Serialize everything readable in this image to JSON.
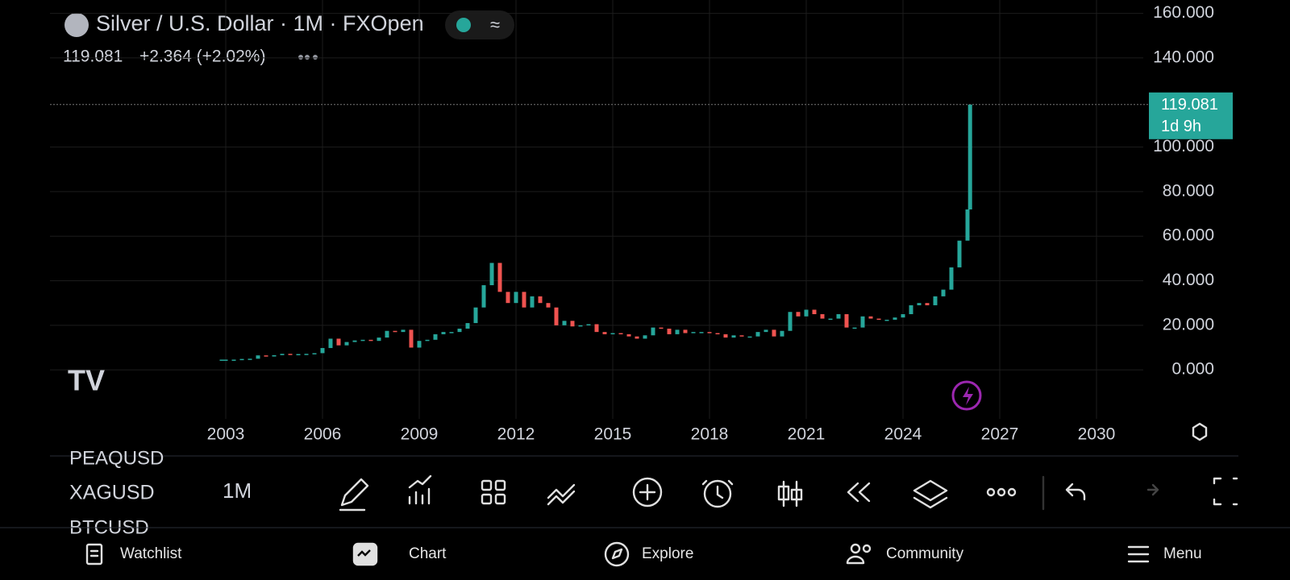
{
  "header": {
    "title": "Silver / U.S. Dollar · 1M · FXOpen",
    "price": "119.081",
    "change": "+2.364 (+2.02%)"
  },
  "chart_data": {
    "type": "candlestick",
    "x": [
      2002.875,
      2003.0,
      2003.25,
      2003.5,
      2003.75,
      2004.0,
      2004.25,
      2004.5,
      2004.75,
      2005.0,
      2005.25,
      2005.5,
      2005.75,
      2006.0,
      2006.25,
      2006.5,
      2006.75,
      2007.0,
      2007.25,
      2007.5,
      2007.75,
      2008.0,
      2008.25,
      2008.5,
      2008.75,
      2009.0,
      2009.25,
      2009.5,
      2009.75,
      2010.0,
      2010.25,
      2010.5,
      2010.75,
      2011.0,
      2011.25,
      2011.5,
      2011.75,
      2012.0,
      2012.25,
      2012.5,
      2012.75,
      2013.0,
      2013.25,
      2013.5,
      2013.75,
      2014.0,
      2014.25,
      2014.5,
      2014.75,
      2015.0,
      2015.25,
      2015.5,
      2015.75,
      2016.0,
      2016.25,
      2016.5,
      2016.75,
      2017.0,
      2017.25,
      2017.5,
      2017.75,
      2018.0,
      2018.25,
      2018.5,
      2018.75,
      2019.0,
      2019.25,
      2019.5,
      2019.75,
      2020.0,
      2020.25,
      2020.5,
      2020.75,
      2021.0,
      2021.25,
      2021.5,
      2021.75,
      2022.0,
      2022.25,
      2022.5,
      2022.75,
      2023.0,
      2023.25,
      2023.5,
      2023.75,
      2024.0,
      2024.25,
      2024.5,
      2024.75,
      2025.0,
      2025.25,
      2025.5,
      2025.75,
      2026.0,
      2026.08
    ],
    "values": [
      4.6,
      4.6,
      4.6,
      4.9,
      5.0,
      6.5,
      6.0,
      6.6,
      7.2,
      7.0,
      7.1,
      7.2,
      7.5,
      9.8,
      14,
      11,
      12.5,
      13.2,
      13.5,
      13,
      14.5,
      17.5,
      17,
      18,
      10,
      13,
      13.5,
      16,
      17,
      17,
      18.5,
      21,
      28,
      38,
      48,
      35,
      30,
      35,
      28,
      33,
      30,
      28,
      20,
      22,
      19.5,
      20,
      20.5,
      17,
      16,
      16.5,
      16,
      15,
      14,
      15.5,
      19,
      18.5,
      16,
      18,
      16.5,
      17,
      17,
      16.5,
      16,
      14.5,
      15.5,
      15,
      15,
      17,
      18,
      15,
      17.5,
      26,
      24,
      27,
      25,
      23,
      23,
      25,
      19,
      19,
      24,
      23,
      22.5,
      22.5,
      23.5,
      25,
      29,
      30,
      29,
      33,
      36,
      46,
      58,
      72,
      119.081
    ],
    "xlim": [
      1997.55,
      2031.45
    ],
    "xticks": [
      2003,
      2006,
      2009,
      2012,
      2015,
      2018,
      2021,
      2024,
      2027,
      2030
    ],
    "ylim": [
      -22,
      166
    ],
    "yticks": [
      {
        "value": 0,
        "label": "0.000"
      },
      {
        "value": 20,
        "label": "20.000"
      },
      {
        "value": 40,
        "label": "40.000"
      },
      {
        "value": 60,
        "label": "60.000"
      },
      {
        "value": 80,
        "label": "80.000"
      },
      {
        "value": 100,
        "label": "100.000"
      },
      {
        "value": 140,
        "label": "140.000"
      },
      {
        "value": 160,
        "label": "160.000"
      }
    ],
    "countdown": "1d 9h",
    "up_color": "#26a69a",
    "down_color": "#ef5350",
    "grid": true
  },
  "symbols": [
    "PEAQUSD",
    "XAGUSD",
    "BTCUSD"
  ],
  "interval": "1M",
  "nav": [
    "Watchlist",
    "Chart",
    "Explore",
    "Community",
    "Menu"
  ]
}
